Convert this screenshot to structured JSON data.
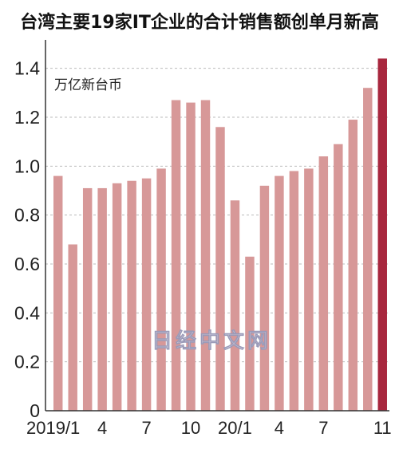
{
  "chart_data": {
    "type": "bar",
    "title": "台湾主要19家IT企业的合计销售额创单月新高",
    "unit_label": "万亿新台币",
    "watermark": "日经中文网",
    "ylim": [
      0,
      1.5
    ],
    "yticks": [
      "0",
      "0.2",
      "0.4",
      "0.6",
      "0.8",
      "1.0",
      "1.2",
      "1.4"
    ],
    "ytick_values": [
      0,
      0.2,
      0.4,
      0.6,
      0.8,
      1.0,
      1.2,
      1.4
    ],
    "categories": [
      "2019/1",
      "2019/2",
      "2019/3",
      "2019/4",
      "2019/5",
      "2019/6",
      "2019/7",
      "2019/8",
      "2019/9",
      "2019/10",
      "2019/11",
      "2019/12",
      "2020/1",
      "2020/2",
      "2020/3",
      "2020/4",
      "2020/5",
      "2020/6",
      "2020/7",
      "2020/8",
      "2020/9",
      "2020/10",
      "2020/11"
    ],
    "values": [
      0.96,
      0.68,
      0.91,
      0.91,
      0.93,
      0.94,
      0.95,
      0.99,
      1.27,
      1.26,
      1.27,
      1.16,
      0.86,
      0.63,
      0.92,
      0.96,
      0.98,
      0.99,
      1.04,
      1.09,
      1.19,
      1.32,
      1.44
    ],
    "x_tick_labels": [
      {
        "index": 0,
        "label": "2019/1"
      },
      {
        "index": 3,
        "label": "4"
      },
      {
        "index": 6,
        "label": "7"
      },
      {
        "index": 9,
        "label": "10"
      },
      {
        "index": 12,
        "label": "20/1"
      },
      {
        "index": 15,
        "label": "4"
      },
      {
        "index": 18,
        "label": "7"
      },
      {
        "index": 22,
        "label": "11"
      }
    ],
    "grid": "horizontal dashed",
    "colors": {
      "bar": "#d79898",
      "bar_highlight": "#a8273e",
      "grid": "#bbbbbb",
      "axis": "#333333",
      "text": "#222222"
    }
  }
}
